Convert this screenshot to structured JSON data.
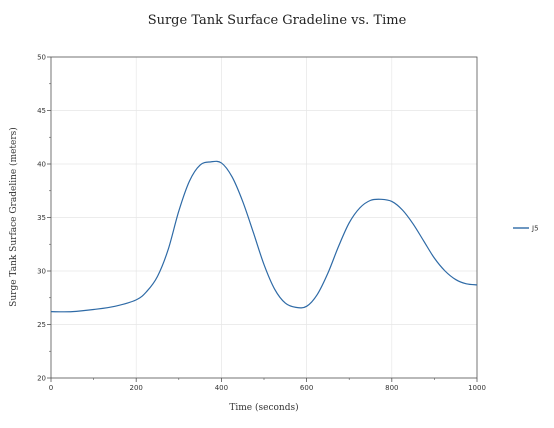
{
  "chart_data": {
    "type": "line",
    "title": "Surge Tank Surface Gradeline vs. Time",
    "xlabel": "Time (seconds)",
    "ylabel": "Surge Tank Surface Gradeline (meters)",
    "xlim": [
      0,
      1000
    ],
    "ylim": [
      20,
      50
    ],
    "xticks": [
      0,
      200,
      400,
      600,
      800,
      1000
    ],
    "yticks": [
      20,
      25,
      30,
      35,
      40,
      45,
      50
    ],
    "grid": true,
    "legend_position": "right",
    "series": [
      {
        "name": "J5",
        "color": "#2e6aa6",
        "x": [
          0,
          50,
          100,
          150,
          200,
          225,
          250,
          275,
          300,
          325,
          350,
          375,
          400,
          425,
          450,
          475,
          500,
          525,
          550,
          575,
          600,
          625,
          650,
          675,
          700,
          725,
          750,
          775,
          800,
          825,
          850,
          875,
          900,
          925,
          950,
          975,
          1000
        ],
        "y": [
          26.2,
          26.2,
          26.4,
          26.7,
          27.3,
          28.1,
          29.5,
          32.0,
          35.6,
          38.4,
          39.9,
          40.2,
          40.1,
          38.8,
          36.5,
          33.6,
          30.6,
          28.3,
          27.0,
          26.6,
          26.7,
          27.8,
          29.8,
          32.3,
          34.5,
          35.9,
          36.6,
          36.7,
          36.5,
          35.7,
          34.4,
          32.8,
          31.2,
          30.0,
          29.2,
          28.8,
          28.7
        ]
      }
    ]
  }
}
